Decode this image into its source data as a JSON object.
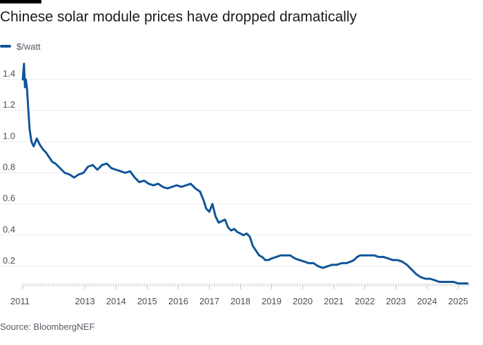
{
  "header": {
    "title": "Chinese solar module prices have dropped dramatically"
  },
  "footer": {
    "source": "Source: BloombergNEF"
  },
  "colors": {
    "series": "#0f5499",
    "grid": "#ebebeb",
    "accent_bar": "#000000"
  },
  "chart_data": {
    "type": "line",
    "title": "Chinese solar module prices have dropped dramatically",
    "xlabel": "",
    "ylabel": "$/watt",
    "xlim": [
      2011.0,
      2025.4
    ],
    "ylim": [
      0.08,
      1.52
    ],
    "grid": true,
    "legend_position": "top-left",
    "y_ticks": [
      "0.2",
      "0.4",
      "0.6",
      "0.8",
      "1.0",
      "1.2",
      "1.4"
    ],
    "x_ticks": [
      "2011",
      "2013",
      "2014",
      "2015",
      "2016",
      "2017",
      "2018",
      "2019",
      "2020",
      "2021",
      "2022",
      "2023",
      "2024",
      "2025"
    ],
    "series": [
      {
        "name": "$/watt",
        "x": [
          2011.0,
          2011.04,
          2011.07,
          2011.1,
          2011.14,
          2011.18,
          2011.22,
          2011.28,
          2011.35,
          2011.45,
          2011.55,
          2011.65,
          2011.75,
          2011.85,
          2011.95,
          2012.05,
          2012.15,
          2012.25,
          2012.35,
          2012.5,
          2012.65,
          2012.8,
          2012.95,
          2013.1,
          2013.25,
          2013.4,
          2013.55,
          2013.7,
          2013.85,
          2014.0,
          2014.15,
          2014.3,
          2014.45,
          2014.6,
          2014.75,
          2014.9,
          2015.05,
          2015.2,
          2015.35,
          2015.5,
          2015.65,
          2015.8,
          2015.95,
          2016.1,
          2016.25,
          2016.4,
          2016.55,
          2016.7,
          2016.82,
          2016.9,
          2017.0,
          2017.1,
          2017.2,
          2017.3,
          2017.4,
          2017.5,
          2017.6,
          2017.7,
          2017.8,
          2017.9,
          2018.0,
          2018.1,
          2018.2,
          2018.3,
          2018.4,
          2018.5,
          2018.6,
          2018.7,
          2018.8,
          2018.9,
          2019.0,
          2019.15,
          2019.3,
          2019.45,
          2019.6,
          2019.75,
          2019.9,
          2020.05,
          2020.2,
          2020.35,
          2020.5,
          2020.65,
          2020.8,
          2020.95,
          2021.1,
          2021.25,
          2021.4,
          2021.55,
          2021.65,
          2021.75,
          2021.85,
          2022.0,
          2022.15,
          2022.3,
          2022.45,
          2022.6,
          2022.75,
          2022.9,
          2023.05,
          2023.2,
          2023.35,
          2023.5,
          2023.65,
          2023.8,
          2023.95,
          2024.1,
          2024.25,
          2024.4,
          2024.55,
          2024.7,
          2024.85,
          2025.0,
          2025.15,
          2025.3
        ],
        "values": [
          1.4,
          1.5,
          1.35,
          1.4,
          1.33,
          1.2,
          1.08,
          1.0,
          0.97,
          1.02,
          0.98,
          0.95,
          0.93,
          0.9,
          0.87,
          0.86,
          0.84,
          0.82,
          0.8,
          0.79,
          0.77,
          0.79,
          0.8,
          0.84,
          0.85,
          0.82,
          0.85,
          0.86,
          0.83,
          0.82,
          0.81,
          0.8,
          0.81,
          0.77,
          0.74,
          0.75,
          0.73,
          0.72,
          0.73,
          0.71,
          0.7,
          0.71,
          0.72,
          0.71,
          0.72,
          0.73,
          0.7,
          0.68,
          0.62,
          0.57,
          0.55,
          0.6,
          0.52,
          0.48,
          0.49,
          0.5,
          0.45,
          0.43,
          0.44,
          0.42,
          0.41,
          0.4,
          0.41,
          0.39,
          0.33,
          0.3,
          0.27,
          0.26,
          0.24,
          0.24,
          0.25,
          0.26,
          0.27,
          0.27,
          0.27,
          0.25,
          0.24,
          0.23,
          0.22,
          0.22,
          0.2,
          0.19,
          0.2,
          0.21,
          0.21,
          0.22,
          0.22,
          0.23,
          0.24,
          0.26,
          0.27,
          0.27,
          0.27,
          0.27,
          0.26,
          0.26,
          0.25,
          0.24,
          0.24,
          0.23,
          0.21,
          0.18,
          0.15,
          0.13,
          0.12,
          0.12,
          0.11,
          0.1,
          0.1,
          0.1,
          0.1,
          0.09,
          0.09,
          0.09
        ]
      }
    ]
  }
}
